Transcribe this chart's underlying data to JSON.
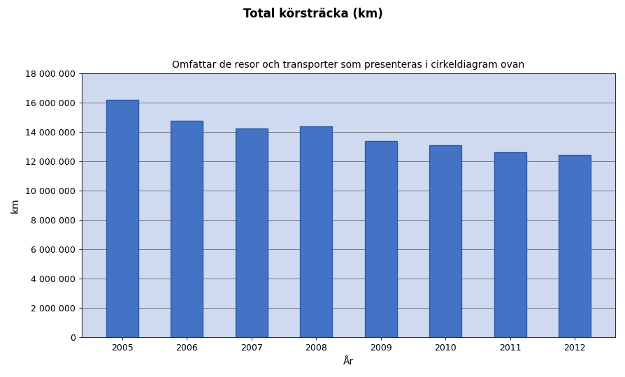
{
  "title": "Total körsträcka (km)",
  "subtitle": "Omfattar de resor och transporter som presenteras i cirkeldiagram ovan",
  "xlabel": "År",
  "ylabel": "km",
  "years": [
    2005,
    2006,
    2007,
    2008,
    2009,
    2010,
    2011,
    2012
  ],
  "values": [
    16200000,
    14750000,
    14250000,
    14400000,
    13400000,
    13100000,
    12650000,
    12450000
  ],
  "bar_color": "#4472C4",
  "bar_edge_color": "#2E5BA8",
  "background_color": "#CFDAF0",
  "plot_bg_color": "#CFDAF0",
  "ylim": [
    0,
    18000000
  ],
  "yticks": [
    0,
    2000000,
    4000000,
    6000000,
    8000000,
    10000000,
    12000000,
    14000000,
    16000000,
    18000000
  ],
  "title_fontsize": 12,
  "subtitle_fontsize": 10,
  "axis_label_fontsize": 10,
  "tick_fontsize": 9
}
